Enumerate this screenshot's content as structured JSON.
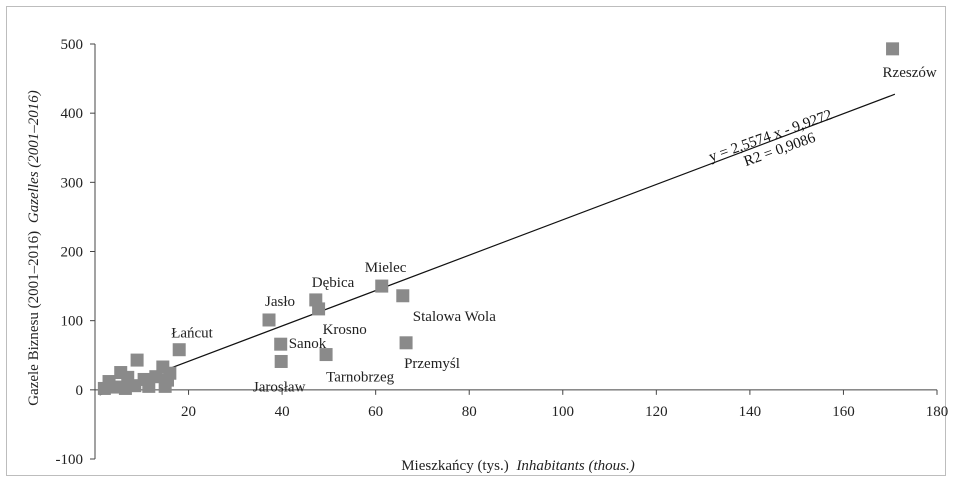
{
  "chart_data": {
    "type": "scatter",
    "xlabel_plain": "Mieszkańcy (tys.)",
    "xlabel_italic": "Inhabitants (thous.)",
    "ylabel_plain": "Gazele Biznesu (2001–2016)",
    "ylabel_italic": "Gazelles (2001–2016)",
    "xlim": [
      0,
      180
    ],
    "ylim": [
      -100,
      500
    ],
    "x_ticks": [
      "20",
      "40",
      "60",
      "80",
      "100",
      "120",
      "140",
      "160",
      "180"
    ],
    "y_ticks": [
      "-100",
      "0",
      "100",
      "200",
      "300",
      "400",
      "500"
    ],
    "points": [
      {
        "x": 170.5,
        "y": 493,
        "label": "Rzeszów"
      },
      {
        "x": 61.3,
        "y": 150,
        "label": "Mielec"
      },
      {
        "x": 47.2,
        "y": 130,
        "label": "Dębica"
      },
      {
        "x": 65.8,
        "y": 136,
        "label": "Stalowa Wola"
      },
      {
        "x": 47.8,
        "y": 117,
        "label": "Krosno"
      },
      {
        "x": 37.2,
        "y": 101,
        "label": "Jasło"
      },
      {
        "x": 39.7,
        "y": 66,
        "label": "Sanok"
      },
      {
        "x": 66.5,
        "y": 68,
        "label": "Przemyśl"
      },
      {
        "x": 49.4,
        "y": 51,
        "label": "Tarnobrzeg"
      },
      {
        "x": 39.8,
        "y": 41,
        "label": "Jarosław"
      },
      {
        "x": 18.0,
        "y": 58,
        "label": "Łańcut"
      },
      {
        "x": 9.0,
        "y": 43,
        "label": ""
      },
      {
        "x": 5.5,
        "y": 25,
        "label": ""
      },
      {
        "x": 14.5,
        "y": 33,
        "label": ""
      },
      {
        "x": 3.0,
        "y": 12,
        "label": ""
      },
      {
        "x": 7.0,
        "y": 18,
        "label": ""
      },
      {
        "x": 10.5,
        "y": 15,
        "label": ""
      },
      {
        "x": 13.0,
        "y": 19,
        "label": ""
      },
      {
        "x": 15.5,
        "y": 14,
        "label": ""
      },
      {
        "x": 4.5,
        "y": 4,
        "label": ""
      },
      {
        "x": 6.5,
        "y": 2,
        "label": ""
      },
      {
        "x": 8.5,
        "y": 6,
        "label": ""
      },
      {
        "x": 11.5,
        "y": 5,
        "label": ""
      },
      {
        "x": 15.0,
        "y": 5,
        "label": ""
      },
      {
        "x": 2.0,
        "y": 2,
        "label": ""
      },
      {
        "x": 16.0,
        "y": 24,
        "label": ""
      }
    ],
    "trendline": {
      "slope": 2.5574,
      "intercept": -9.9272,
      "x_range": [
        1,
        171
      ],
      "equation": "y = 2,5574 x - 9,9272",
      "r2": "R2 = 0,9086"
    },
    "marker_color": "#8a8a8a",
    "grid": false
  }
}
